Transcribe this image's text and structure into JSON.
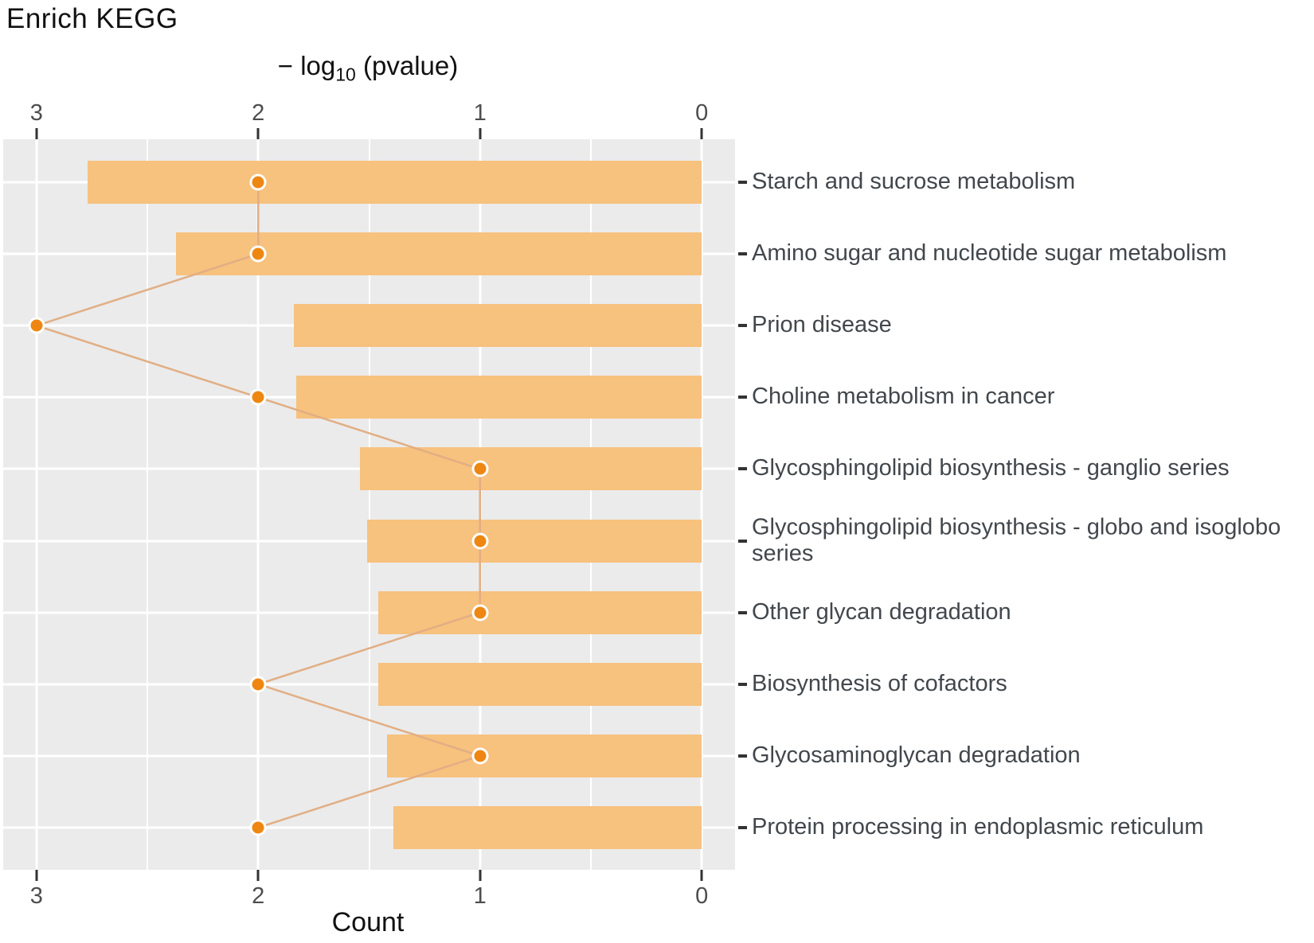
{
  "title": "Enrich KEGG",
  "top_axis": {
    "label_prefix": "− log",
    "label_sub": "10",
    "label_suffix": " (pvalue)"
  },
  "bottom_axis": {
    "label": "Count"
  },
  "chart_data": {
    "type": "bar",
    "title": "Enrich KEGG",
    "orientation": "horizontal",
    "categories": [
      "Starch and sucrose metabolism",
      "Amino sugar and nucleotide sugar metabolism",
      "Prion disease",
      "Choline metabolism in cancer",
      "Glycosphingolipid biosynthesis - ganglio series",
      "Glycosphingolipid biosynthesis - globo and isoglobo series",
      "Other glycan degradation",
      "Biosynthesis of cofactors",
      "Glycosaminoglycan degradation",
      "Protein processing in endoplasmic reticulum"
    ],
    "series": [
      {
        "name": "-log10 (pvalue)",
        "type": "bar",
        "axis": "top",
        "values": [
          2.77,
          2.37,
          1.84,
          1.83,
          1.54,
          1.51,
          1.46,
          1.46,
          1.42,
          1.39
        ]
      },
      {
        "name": "Count",
        "type": "point-line",
        "axis": "bottom",
        "values": [
          2,
          2,
          3,
          2,
          1,
          1,
          1,
          2,
          1,
          2
        ]
      }
    ],
    "x_axis_top": {
      "label": "-log10 (pvalue)",
      "ticks": [
        3,
        2,
        1,
        0
      ],
      "reversed": true
    },
    "x_axis_bottom": {
      "label": "Count",
      "ticks": [
        3,
        2,
        1,
        0
      ],
      "reversed": true
    },
    "xlim": [
      3.15,
      -0.15
    ],
    "grid": "on",
    "legend": "none",
    "colors": {
      "bar_fill": "#F7C17E",
      "point_fill": "#EE8712",
      "point_ring": "#FFFFFF",
      "connector_line": "#E2AE83",
      "panel_background": "#EBEBEB",
      "gridline": "#FFFFFF",
      "tick_mark": "#333333",
      "tick_label": "#4d4d4d",
      "category_label": "#42474c",
      "title_text": "#111111"
    }
  }
}
